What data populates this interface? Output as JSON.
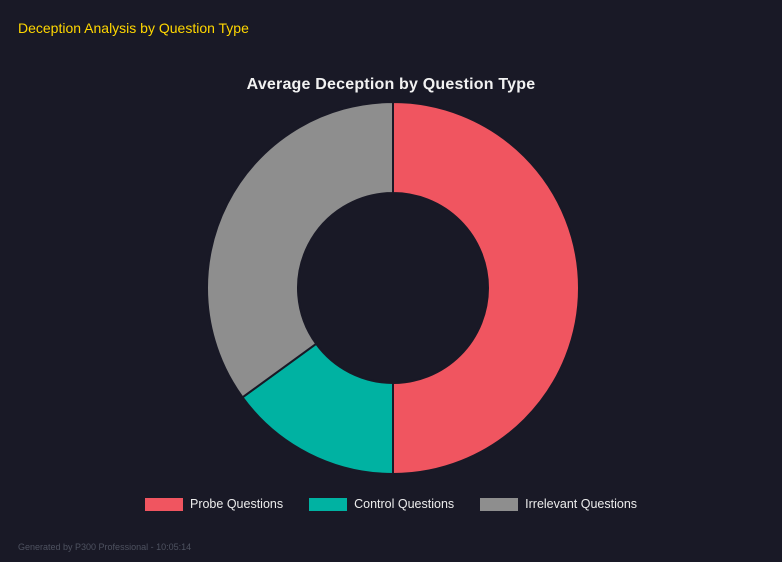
{
  "page": {
    "header": "Deception Analysis by Question Type",
    "footer": "Generated by P300 Professional - 10:05:14",
    "background": "#191926"
  },
  "chart_data": {
    "type": "pie",
    "subtype": "doughnut",
    "title": "Average Deception by Question Type",
    "categories": [
      "Probe Questions",
      "Control Questions",
      "Irrelevant Questions"
    ],
    "values": [
      50,
      15,
      35
    ],
    "colors": [
      "#f05560",
      "#00b2a2",
      "#8e8e8e"
    ],
    "start_angle_deg": 0,
    "legend_position": "bottom",
    "legend_text_color": "#ececec",
    "title_color": "#f2f2f2",
    "accent_header_color": "#ffd700"
  }
}
